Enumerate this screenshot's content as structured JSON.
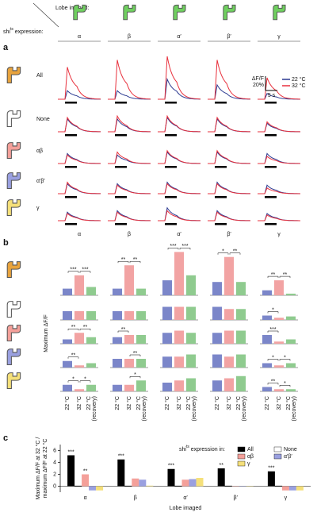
{
  "header": {
    "lobe_imaged": "Lobe imaged:",
    "expression": [
      "shi",
      "ts",
      " expression:"
    ],
    "lobes": [
      "α",
      "β",
      "α′",
      "β′",
      "γ"
    ]
  },
  "panel_a": {
    "label": "a",
    "rows": [
      "All",
      "None",
      "αβ",
      "α′β′",
      "γ"
    ],
    "legend": [
      {
        "name": "22 °C",
        "color": "#2b3990"
      },
      {
        "name": "32 °C",
        "color": "#e8313d"
      }
    ],
    "y_scale_title": "ΔF/F",
    "y_scale": {
      "value": 20,
      "label": "20%"
    },
    "x_scale": {
      "value": 5,
      "label": "5 s"
    },
    "peaks_22": [
      [
        12,
        12,
        28,
        20,
        8
      ],
      [
        18,
        18,
        20,
        18,
        12
      ],
      [
        14,
        12,
        16,
        16,
        14
      ],
      [
        14,
        14,
        16,
        16,
        12
      ],
      [
        12,
        14,
        18,
        14,
        10
      ]
    ],
    "peaks_32": [
      [
        45,
        55,
        60,
        55,
        30
      ],
      [
        20,
        22,
        22,
        20,
        14
      ],
      [
        12,
        16,
        18,
        18,
        10
      ],
      [
        16,
        12,
        14,
        14,
        8
      ],
      [
        10,
        12,
        14,
        12,
        8
      ]
    ]
  },
  "panel_b": {
    "label": "b",
    "y_label": "Maximum ΔF/F",
    "x_labels": [
      "22 °C",
      "32 °C",
      "22 °C"
    ],
    "recovery": "(recovery)",
    "colors": [
      "#7b86c9",
      "#f2a3a3",
      "#8fcb8f"
    ],
    "means": [
      [
        [
          0.2,
          0.6,
          0.25
        ],
        [
          0.2,
          0.9,
          0.2
        ],
        [
          0.45,
          1.3,
          0.6
        ],
        [
          0.4,
          1.15,
          0.4
        ],
        [
          0.15,
          0.45,
          0.05
        ]
      ],
      [
        [
          0.2,
          0.2,
          0.2
        ],
        [
          0.2,
          0.2,
          0.2
        ],
        [
          0.3,
          0.3,
          0.3
        ],
        [
          0.3,
          0.25,
          0.25
        ],
        [
          0.1,
          0.05,
          0.08
        ]
      ],
      [
        [
          0.1,
          0.25,
          0.15
        ],
        [
          0.15,
          0.2,
          0.2
        ],
        [
          0.25,
          0.3,
          0.25
        ],
        [
          0.25,
          0.3,
          0.3
        ],
        [
          0.2,
          0.05,
          0.1
        ]
      ],
      [
        [
          0.15,
          0.05,
          0.1
        ],
        [
          0.2,
          0.2,
          0.2
        ],
        [
          0.25,
          0.25,
          0.3
        ],
        [
          0.3,
          0.25,
          0.3
        ],
        [
          0.1,
          0.05,
          0.1
        ]
      ],
      [
        [
          0.15,
          0.05,
          0.15
        ],
        [
          0.15,
          0.15,
          0.25
        ],
        [
          0.2,
          0.25,
          0.3
        ],
        [
          0.25,
          0.3,
          0.35
        ],
        [
          0.1,
          0.05,
          0.05
        ]
      ]
    ],
    "stars": [
      [
        [
          "***",
          "***",
          null
        ],
        [
          "**",
          "**",
          null
        ],
        [
          "***",
          "***",
          null
        ],
        [
          "*",
          "**",
          null
        ],
        [
          "**",
          "**",
          null
        ]
      ],
      [
        [
          null,
          null,
          null
        ],
        [
          null,
          null,
          null
        ],
        [
          null,
          null,
          null
        ],
        [
          null,
          null,
          null
        ],
        [
          "*",
          null,
          null
        ]
      ],
      [
        [
          "**",
          "**",
          null
        ],
        [
          "**",
          null,
          null
        ],
        [
          null,
          null,
          null
        ],
        [
          null,
          null,
          null
        ],
        [
          "***",
          null,
          null
        ]
      ],
      [
        [
          "**",
          null,
          null
        ],
        [
          null,
          "**",
          null
        ],
        [
          null,
          null,
          null
        ],
        [
          null,
          null,
          null
        ],
        [
          "*",
          "*",
          null
        ]
      ],
      [
        [
          "*",
          "*",
          null
        ],
        [
          null,
          "*",
          null
        ],
        [
          null,
          null,
          null
        ],
        [
          null,
          null,
          null
        ],
        [
          "**",
          "*",
          null
        ]
      ]
    ]
  },
  "chart_data": {
    "type": "bar",
    "panel_label": "c",
    "y_label": [
      "Maximum ΔF/F at 32 °C /",
      "maximum ΔF/F at 22 °C"
    ],
    "x_label": "Lobe imaged",
    "legend_title": [
      "shi",
      "ts",
      " expression in:"
    ],
    "categories": [
      "α",
      "β",
      "α′",
      "β′",
      "γ"
    ],
    "ylim": [
      -1,
      7
    ],
    "yticks": [
      0,
      2,
      4,
      6
    ],
    "series": [
      {
        "name": "All",
        "color": "#000000",
        "values": [
          5.2,
          4.5,
          2.9,
          3.0,
          2.5
        ],
        "stars": [
          "***",
          "***",
          "***",
          "**",
          "***"
        ]
      },
      {
        "name": "None",
        "color": "#ffffff",
        "values": [
          0.05,
          0.05,
          0.05,
          0.05,
          0.05
        ],
        "stars": [
          null,
          null,
          null,
          null,
          null
        ]
      },
      {
        "name": "αβ",
        "color": "#f4a09a",
        "values": [
          2.0,
          1.3,
          1.1,
          0.05,
          -0.7
        ],
        "stars": [
          "**",
          null,
          null,
          null,
          null
        ]
      },
      {
        "name": "α′β′",
        "color": "#9aa0e0",
        "values": [
          -0.7,
          1.1,
          1.2,
          0.05,
          -0.7
        ],
        "stars": [
          null,
          null,
          null,
          null,
          null
        ]
      },
      {
        "name": "γ",
        "color": "#f5e07a",
        "values": [
          -0.7,
          0.1,
          1.4,
          0.05,
          -0.7
        ],
        "stars": [
          null,
          null,
          null,
          null,
          null
        ]
      }
    ]
  }
}
